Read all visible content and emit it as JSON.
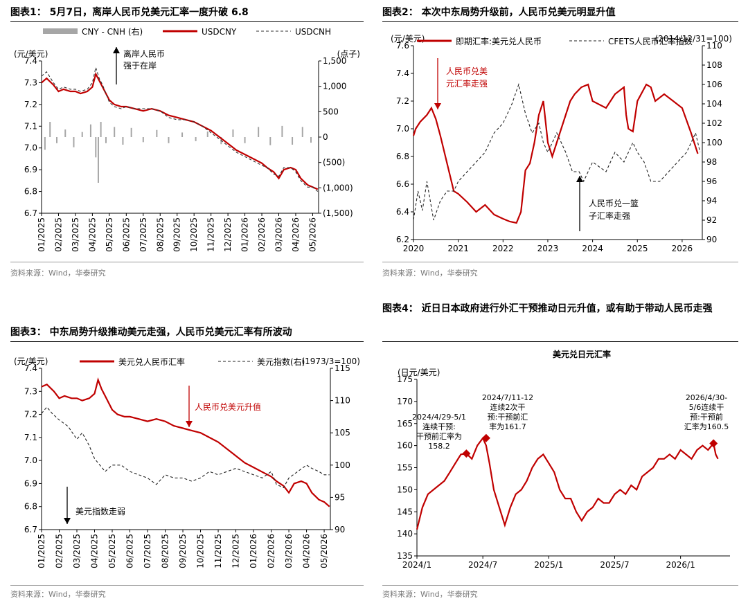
{
  "source_text": "资料来源：Wind，华泰研究",
  "chart_data": [
    {
      "id": "c1",
      "type": "line",
      "title": "图表1：  5月7日，离岸人民币兑美元汇率一度升破 6.8",
      "ylabel_left": "(元/美元)",
      "ylabel_right": "(点子)",
      "x_ticks": [
        "01/2025",
        "02/2025",
        "03/2025",
        "04/2025",
        "05/2025",
        "06/2025",
        "07/2025",
        "08/2025",
        "09/2025",
        "10/2025",
        "11/2025",
        "12/2025",
        "01/2026",
        "02/2026",
        "03/2026",
        "04/2026",
        "05/2026"
      ],
      "ylim_left": [
        6.7,
        7.4
      ],
      "yticks_left": [
        "6.7",
        "6.8",
        "6.9",
        "7.0",
        "7.1",
        "7.2",
        "7.3",
        "7.4"
      ],
      "ylim_right": [
        -1500,
        1500
      ],
      "yticks_right": [
        "(1,500)",
        "(1,000)",
        "(500)",
        "0",
        "500",
        "1,000",
        "1,500"
      ],
      "legend": [
        "CNY - CNH (右)",
        "USDCNY",
        "USDCNH"
      ],
      "series": [
        {
          "name": "USDCNY",
          "style": "solid",
          "color": "#c00000",
          "axis": "left",
          "x": [
            0,
            0.3,
            0.7,
            1,
            1.3,
            1.7,
            2,
            2.3,
            2.7,
            3,
            3.2,
            3.4,
            3.6,
            4,
            4.3,
            4.7,
            5,
            5.5,
            6,
            6.5,
            7,
            7.5,
            8,
            8.5,
            9,
            9.5,
            10,
            10.5,
            11,
            11.5,
            12,
            12.5,
            13,
            13.3,
            13.7,
            14,
            14.3,
            14.7,
            15,
            15.3,
            15.7,
            16,
            16.3
          ],
          "y": [
            7.3,
            7.32,
            7.29,
            7.26,
            7.27,
            7.26,
            7.26,
            7.25,
            7.26,
            7.28,
            7.34,
            7.31,
            7.28,
            7.22,
            7.2,
            7.19,
            7.19,
            7.18,
            7.17,
            7.18,
            7.17,
            7.15,
            7.14,
            7.13,
            7.12,
            7.1,
            7.08,
            7.05,
            7.02,
            6.99,
            6.97,
            6.95,
            6.93,
            6.91,
            6.89,
            6.86,
            6.9,
            6.91,
            6.9,
            6.86,
            6.83,
            6.82,
            6.81
          ]
        },
        {
          "name": "USDCNH",
          "style": "dashed",
          "color": "#333333",
          "axis": "left",
          "x": [
            0,
            0.3,
            0.7,
            1,
            1.3,
            1.7,
            2,
            2.3,
            2.7,
            3,
            3.2,
            3.4,
            3.6,
            4,
            4.3,
            4.7,
            5,
            5.5,
            6,
            6.5,
            7,
            7.5,
            8,
            8.5,
            9,
            9.5,
            10,
            10.5,
            11,
            11.5,
            12,
            12.5,
            13,
            13.3,
            13.7,
            14,
            14.3,
            14.7,
            15,
            15.3,
            15.7,
            16,
            16.3
          ],
          "y": [
            7.33,
            7.35,
            7.3,
            7.27,
            7.28,
            7.27,
            7.27,
            7.26,
            7.27,
            7.3,
            7.37,
            7.32,
            7.29,
            7.21,
            7.19,
            7.18,
            7.19,
            7.18,
            7.18,
            7.18,
            7.17,
            7.14,
            7.13,
            7.13,
            7.12,
            7.1,
            7.07,
            7.04,
            7.01,
            6.98,
            6.96,
            6.94,
            6.92,
            6.91,
            6.88,
            6.87,
            6.91,
            6.91,
            6.89,
            6.85,
            6.82,
            6.82,
            6.8
          ]
        },
        {
          "name": "CNY - CNH (右)",
          "type": "bar",
          "color": "#a6a6a6",
          "axis": "right",
          "x": [
            0.2,
            0.5,
            0.9,
            1.4,
            1.9,
            2.4,
            2.9,
            3.2,
            3.35,
            3.5,
            3.8,
            4.3,
            4.8,
            5.3,
            6.0,
            6.8,
            7.5,
            8.3,
            9.1,
            9.8,
            10.6,
            11.3,
            12.0,
            12.8,
            13.5,
            14.2,
            14.8,
            15.4,
            15.9
          ],
          "y": [
            -250,
            300,
            -120,
            150,
            -200,
            100,
            250,
            -400,
            -900,
            300,
            -120,
            200,
            -150,
            180,
            -100,
            140,
            -120,
            90,
            -80,
            110,
            -140,
            150,
            -120,
            200,
            -160,
            220,
            -150,
            200,
            -110
          ]
        }
      ],
      "annotations": [
        {
          "text": "离岸人民币强于在岸",
          "arrow": "up"
        }
      ]
    },
    {
      "id": "c2",
      "type": "line",
      "title": "图表2：  本次中东局势升级前，人民币兑美元明显升值",
      "ylabel_left": "(元/美元)",
      "ylabel_right": "(2014/12/31=100)",
      "x_ticks": [
        "2020",
        "2021",
        "2022",
        "2023",
        "2024",
        "2025",
        "2026"
      ],
      "xlim": [
        2020,
        2026.45
      ],
      "ylim_left": [
        6.2,
        7.6
      ],
      "yticks_left": [
        "6.2",
        "6.4",
        "6.6",
        "6.8",
        "7.0",
        "7.2",
        "7.4",
        "7.6"
      ],
      "ylim_right": [
        90,
        110
      ],
      "yticks_right": [
        "90",
        "92",
        "94",
        "96",
        "98",
        "100",
        "102",
        "104",
        "106",
        "108",
        "110"
      ],
      "legend": [
        "即期汇率:美元兑人民币",
        "CFETS人民币汇率指数"
      ],
      "series": [
        {
          "name": "即期汇率:美元兑人民币",
          "style": "solid",
          "color": "#c00000",
          "axis": "left",
          "x": [
            2020,
            2020.05,
            2020.15,
            2020.3,
            2020.4,
            2020.5,
            2020.6,
            2020.75,
            2020.9,
            2021.0,
            2021.2,
            2021.4,
            2021.6,
            2021.8,
            2022.0,
            2022.15,
            2022.3,
            2022.4,
            2022.5,
            2022.6,
            2022.7,
            2022.8,
            2022.9,
            2023.0,
            2023.1,
            2023.3,
            2023.5,
            2023.6,
            2023.75,
            2023.9,
            2024.0,
            2024.3,
            2024.5,
            2024.7,
            2024.75,
            2024.8,
            2024.9,
            2025.0,
            2025.2,
            2025.3,
            2025.4,
            2025.6,
            2025.8,
            2026.0,
            2026.2,
            2026.35
          ],
          "y": [
            6.95,
            7.0,
            7.05,
            7.1,
            7.15,
            7.07,
            6.95,
            6.75,
            6.55,
            6.53,
            6.47,
            6.4,
            6.45,
            6.38,
            6.35,
            6.33,
            6.32,
            6.4,
            6.7,
            6.75,
            6.9,
            7.1,
            7.2,
            6.9,
            6.8,
            7.0,
            7.2,
            7.25,
            7.3,
            7.32,
            7.2,
            7.15,
            7.25,
            7.3,
            7.1,
            7.0,
            6.98,
            7.2,
            7.32,
            7.3,
            7.2,
            7.25,
            7.2,
            7.15,
            6.97,
            6.82
          ]
        },
        {
          "name": "CFETS人民币汇率指数",
          "style": "dashed",
          "color": "#222222",
          "axis": "right",
          "x": [
            2020,
            2020.1,
            2020.2,
            2020.3,
            2020.45,
            2020.6,
            2020.75,
            2020.9,
            2021.0,
            2021.2,
            2021.4,
            2021.6,
            2021.8,
            2022.0,
            2022.1,
            2022.2,
            2022.35,
            2022.5,
            2022.65,
            2022.8,
            2022.9,
            2023.0,
            2023.2,
            2023.4,
            2023.55,
            2023.7,
            2023.8,
            2024.0,
            2024.3,
            2024.5,
            2024.7,
            2024.9,
            2025.0,
            2025.15,
            2025.3,
            2025.5,
            2025.7,
            2025.9,
            2026.1,
            2026.3,
            2026.4
          ],
          "y": [
            92,
            95,
            93,
            96,
            92,
            94,
            95,
            95,
            96,
            97,
            98,
            99,
            101,
            102,
            103,
            104,
            106,
            103,
            101,
            102,
            100,
            99,
            101,
            99,
            97,
            97,
            96,
            98,
            97,
            99,
            98,
            100,
            99,
            98,
            96,
            96,
            97,
            98,
            99,
            101,
            99
          ]
        }
      ],
      "annotations": [
        {
          "text": "人民币兑美元汇率走强",
          "arrow": "down"
        },
        {
          "text": "人民币兑一篮子汇率走强",
          "arrow": "up"
        }
      ]
    },
    {
      "id": "c3",
      "type": "line",
      "title": "图表3：  中东局势升级推动美元走强，人民币兑美元汇率有所波动",
      "ylabel_left": "(元/美元)",
      "ylabel_right": "(1973/3=100)",
      "x_ticks": [
        "01/2025",
        "02/2025",
        "03/2025",
        "04/2025",
        "05/2025",
        "06/2025",
        "07/2025",
        "08/2025",
        "09/2025",
        "10/2025",
        "11/2025",
        "12/2025",
        "01/2026",
        "02/2026",
        "03/2026",
        "04/2026",
        "05/2026"
      ],
      "ylim_left": [
        6.7,
        7.4
      ],
      "yticks_left": [
        "6.7",
        "6.8",
        "6.9",
        "7.0",
        "7.1",
        "7.2",
        "7.3",
        "7.4"
      ],
      "ylim_right": [
        90,
        115
      ],
      "yticks_right": [
        "90",
        "95",
        "100",
        "105",
        "110",
        "115"
      ],
      "legend": [
        "美元兑人民币汇率",
        "美元指数(右)"
      ],
      "series": [
        {
          "name": "美元兑人民币汇率",
          "style": "solid",
          "color": "#c00000",
          "axis": "left",
          "x": [
            0,
            0.3,
            0.7,
            1,
            1.3,
            1.7,
            2,
            2.3,
            2.7,
            3,
            3.2,
            3.4,
            3.6,
            4,
            4.3,
            4.7,
            5,
            5.5,
            6,
            6.5,
            7,
            7.5,
            8,
            8.5,
            9,
            9.5,
            10,
            10.5,
            11,
            11.5,
            12,
            12.5,
            13,
            13.3,
            13.7,
            14,
            14.3,
            14.7,
            15,
            15.3,
            15.7,
            16,
            16.3
          ],
          "y": [
            7.32,
            7.33,
            7.3,
            7.27,
            7.28,
            7.27,
            7.27,
            7.26,
            7.27,
            7.29,
            7.35,
            7.31,
            7.28,
            7.22,
            7.2,
            7.19,
            7.19,
            7.18,
            7.17,
            7.18,
            7.17,
            7.15,
            7.14,
            7.13,
            7.12,
            7.1,
            7.08,
            7.05,
            7.02,
            6.99,
            6.97,
            6.95,
            6.93,
            6.91,
            6.89,
            6.86,
            6.9,
            6.91,
            6.9,
            6.86,
            6.83,
            6.82,
            6.8
          ]
        },
        {
          "name": "美元指数(右)",
          "style": "dashed",
          "color": "#222222",
          "axis": "right",
          "x": [
            0,
            0.3,
            0.6,
            1,
            1.5,
            2,
            2.3,
            2.7,
            3,
            3.3,
            3.6,
            4,
            4.5,
            5,
            5.5,
            6,
            6.5,
            7,
            7.5,
            8,
            8.5,
            9,
            9.5,
            10,
            10.5,
            11,
            11.5,
            12,
            12.5,
            13,
            13.3,
            13.7,
            14,
            14.5,
            15,
            15.3,
            15.7,
            16,
            16.3
          ],
          "y": [
            108,
            109,
            108,
            107,
            106,
            104,
            105,
            103,
            101,
            100,
            99,
            100,
            100,
            99,
            98.5,
            98,
            97,
            98.5,
            98,
            98,
            97.5,
            98,
            99,
            98.5,
            99,
            99.5,
            99,
            98.5,
            98,
            99,
            97,
            96.5,
            98,
            99,
            100,
            99.5,
            99,
            98.5,
            98.5
          ]
        }
      ],
      "annotations": [
        {
          "text": "人民币兑美元升值",
          "arrow": "down"
        },
        {
          "text": "美元指数走弱",
          "arrow": "down"
        }
      ]
    },
    {
      "id": "c4",
      "type": "line",
      "title": "图表4：  近日日本政府进行外汇干预推动日元升值，或有助于带动人民币走强",
      "subtitle": "美元兑日元汇率",
      "ylabel_left": "(日元/美元)",
      "x_ticks": [
        "2024/1",
        "2024/7",
        "2025/1",
        "2025/7",
        "2026/1"
      ],
      "xlim": [
        0,
        28.5
      ],
      "ylim_left": [
        135,
        175
      ],
      "yticks_left": [
        "135",
        "140",
        "145",
        "150",
        "155",
        "160",
        "165",
        "170",
        "175"
      ],
      "series": [
        {
          "name": "美元兑日元汇率",
          "style": "solid",
          "color": "#c00000",
          "axis": "left",
          "x": [
            0,
            0.5,
            1,
            1.5,
            2,
            2.5,
            3,
            3.5,
            4,
            4.5,
            5,
            5.5,
            6,
            6.3,
            6.6,
            7,
            7.5,
            8,
            8.5,
            9,
            9.5,
            10,
            10.5,
            11,
            11.5,
            12,
            12.5,
            13,
            13.5,
            14,
            14.5,
            15,
            15.5,
            16,
            16.5,
            17,
            17.5,
            18,
            18.5,
            19,
            19.5,
            20,
            20.5,
            21,
            21.5,
            22,
            22.5,
            23,
            23.5,
            24,
            24.5,
            25,
            25.5,
            26,
            26.5,
            27,
            27.2,
            27.4
          ],
          "y": [
            141,
            146,
            149,
            150,
            151,
            152,
            154,
            156,
            158,
            158.2,
            157,
            160,
            161.7,
            160,
            156,
            150,
            146,
            142,
            146,
            149,
            150,
            152,
            155,
            157,
            158,
            156,
            154,
            150,
            148,
            148,
            145,
            143,
            145,
            146,
            148,
            147,
            147,
            149,
            150,
            149,
            151,
            150,
            153,
            154,
            155,
            157,
            157,
            158,
            157,
            159,
            158,
            157,
            159,
            160,
            159,
            160.5,
            158,
            157
          ]
        }
      ],
      "annotations": [
        {
          "text": "2024/4/29-5/1\n连续干预:\n干预前汇率为\n158.2",
          "x": 4.5,
          "y": 158.2
        },
        {
          "text": "2024/7/11-12\n连续2次干\n预:干预前汇\n率为161.7",
          "x": 6.3,
          "y": 161.7
        },
        {
          "text": "2026/4/30-\n5/6连续干\n预:干预前\n汇率为160.5",
          "x": 27,
          "y": 160.5
        }
      ]
    }
  ]
}
